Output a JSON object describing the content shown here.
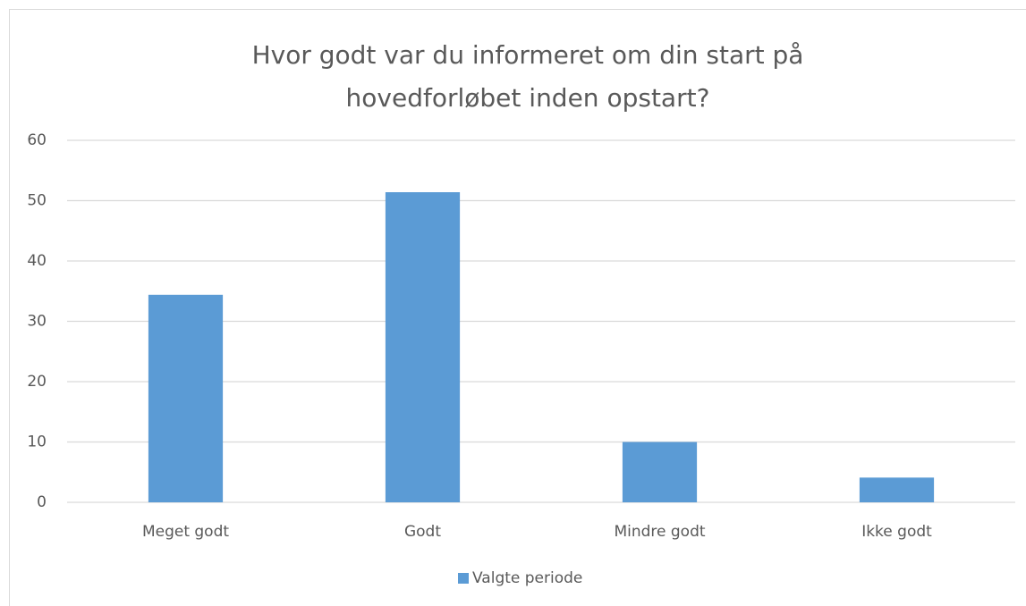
{
  "chart_data": {
    "type": "bar",
    "title": "Hvor godt var du informeret om din start på hovedforløbet inden opstart?",
    "categories": [
      "Meget godt",
      "Godt",
      "Mindre godt",
      "Ikke godt"
    ],
    "series": [
      {
        "name": "Valgte periode",
        "color": "#5b9bd5",
        "values": [
          34.4,
          51.4,
          10,
          4.1
        ]
      }
    ],
    "ylim": [
      0,
      60
    ],
    "yticks": [
      0,
      10,
      20,
      30,
      40,
      50,
      60
    ],
    "grid": true,
    "legend": "bottom"
  }
}
